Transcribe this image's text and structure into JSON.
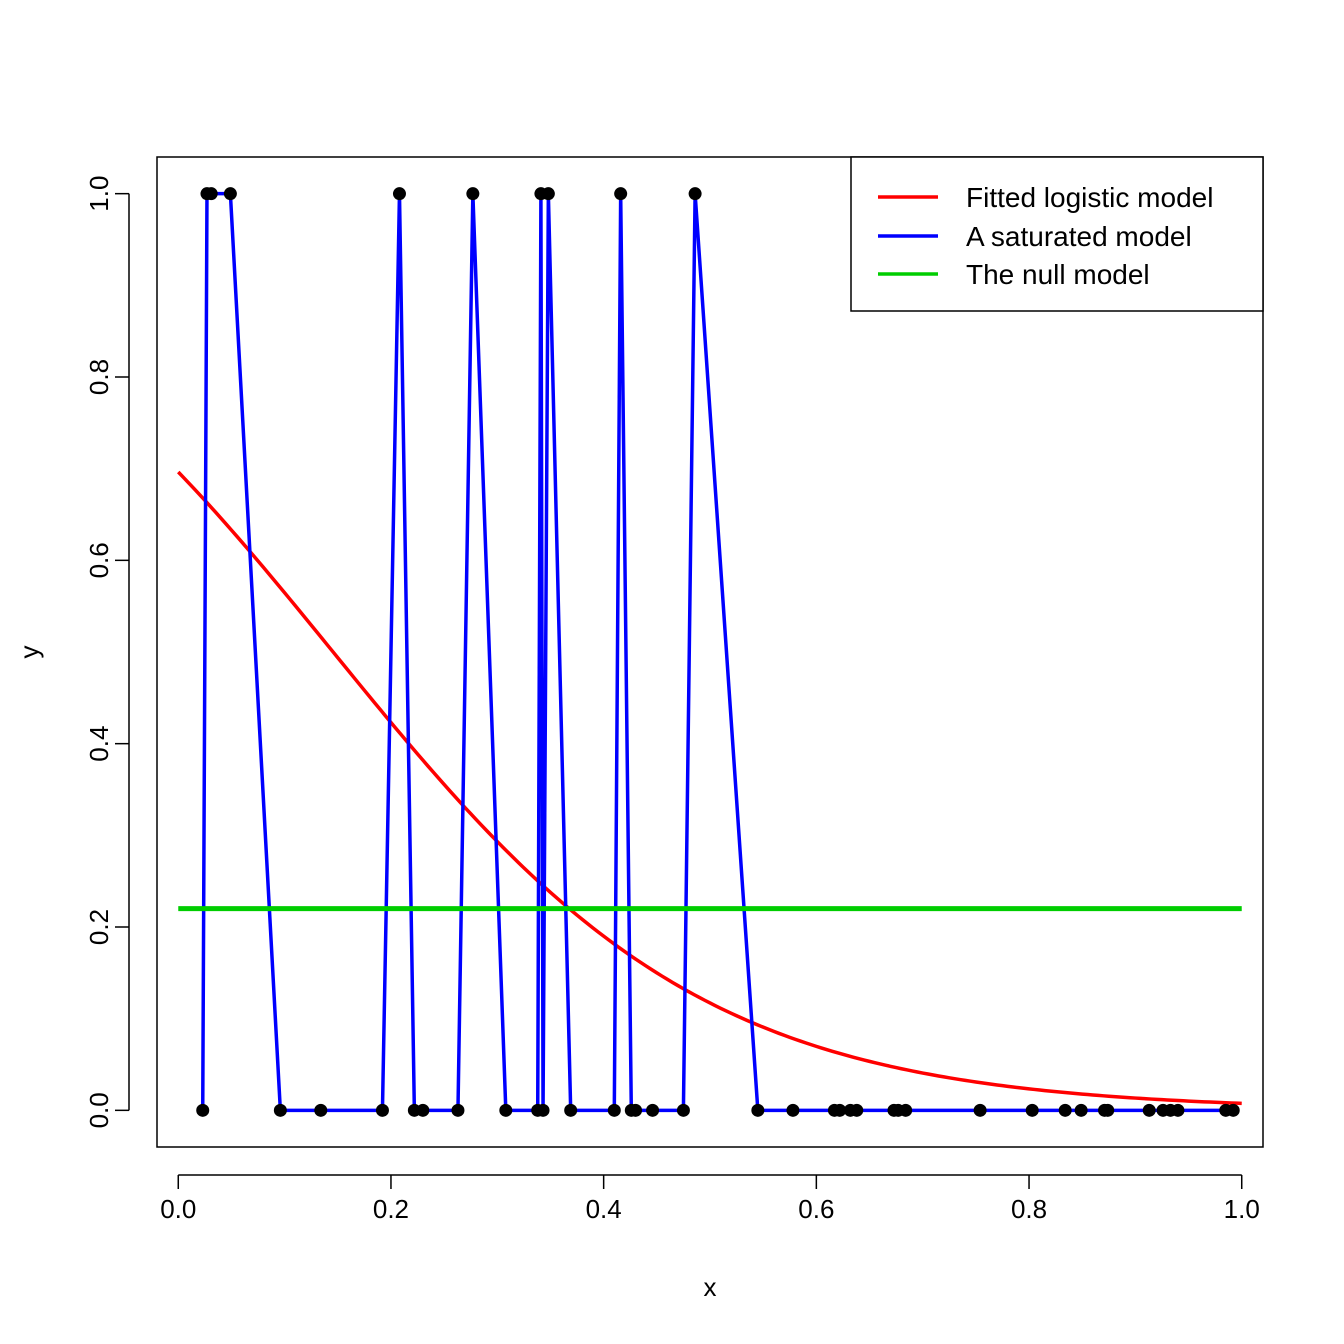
{
  "chart_data": {
    "type": "line",
    "title": "",
    "xlabel": "x",
    "ylabel": "y",
    "xlim": [
      -0.02,
      1.02
    ],
    "ylim": [
      -0.04,
      1.04
    ],
    "xticks": [
      0.0,
      0.2,
      0.4,
      0.6,
      0.8,
      1.0
    ],
    "xtick_labels": [
      "0.0",
      "0.2",
      "0.4",
      "0.6",
      "0.8",
      "1.0"
    ],
    "yticks": [
      0.0,
      0.2,
      0.4,
      0.6,
      0.8,
      1.0
    ],
    "ytick_labels": [
      "0.0",
      "0.2",
      "0.4",
      "0.6",
      "0.8",
      "1.0"
    ],
    "legend": {
      "placement": "top-right",
      "entries": [
        {
          "label": "Fitted logistic model",
          "color": "#ff0000"
        },
        {
          "label": "A saturated model",
          "color": "#0000ff"
        },
        {
          "label": "The null model",
          "color": "#00cd00"
        }
      ]
    },
    "points": {
      "x": [
        0.023,
        0.027,
        0.031,
        0.049,
        0.096,
        0.134,
        0.192,
        0.208,
        0.222,
        0.23,
        0.263,
        0.277,
        0.308,
        0.338,
        0.341,
        0.343,
        0.348,
        0.369,
        0.41,
        0.416,
        0.426,
        0.43,
        0.446,
        0.475,
        0.486,
        0.545,
        0.578,
        0.617,
        0.622,
        0.632,
        0.638,
        0.673,
        0.677,
        0.684,
        0.754,
        0.803,
        0.834,
        0.849,
        0.871,
        0.874,
        0.913,
        0.926,
        0.933,
        0.94,
        0.985,
        0.992
      ],
      "y": [
        0,
        1,
        1,
        1,
        0,
        0,
        0,
        1,
        0,
        0,
        0,
        1,
        0,
        0,
        1,
        0,
        1,
        0,
        0,
        1,
        0,
        0,
        0,
        0,
        1,
        0,
        0,
        0,
        0,
        0,
        0,
        0,
        0,
        0,
        0,
        0,
        0,
        0,
        0,
        0,
        0,
        0,
        0,
        0,
        0,
        0
      ],
      "color": "#000000"
    },
    "series": [
      {
        "name": "Fitted logistic model",
        "color": "#ff0000",
        "kind": "logistic",
        "intercept": 0.83,
        "slope": -5.7,
        "x_range": [
          0.0,
          1.0
        ]
      },
      {
        "name": "A saturated model",
        "color": "#0000ff",
        "kind": "connect-points"
      },
      {
        "name": "The null model",
        "color": "#00cd00",
        "kind": "constant",
        "value": 0.22,
        "x_range": [
          0.0,
          1.0
        ]
      }
    ]
  }
}
